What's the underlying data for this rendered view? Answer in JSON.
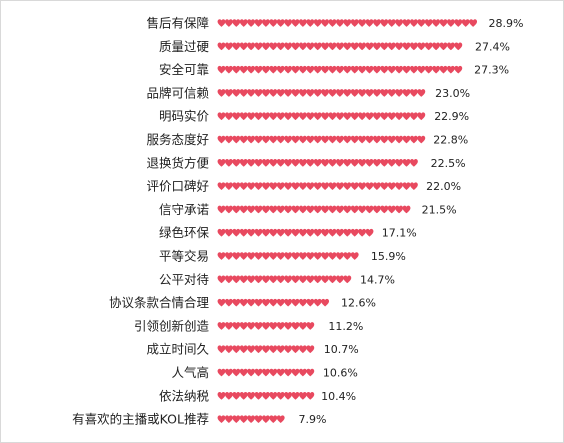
{
  "chart_data": {
    "type": "bar",
    "orientation": "horizontal",
    "title": "",
    "xlabel": "",
    "ylabel": "",
    "xlim": [
      0,
      30
    ],
    "grid": false,
    "legend": "none",
    "marker": "heart-icon",
    "bar_color": "#e8495f",
    "categories": [
      "售后有保障",
      "质量过硬",
      "安全可靠",
      "品牌可信赖",
      "明码实价",
      "服务态度好",
      "退换货方便",
      "评价口碑好",
      "信守承诺",
      "绿色环保",
      "平等交易",
      "公平对待",
      "协议条款合情合理",
      "引领创新创造",
      "成立时间久",
      "人气高",
      "依法纳税",
      "有喜欢的主播或KOL推荐"
    ],
    "values": [
      28.9,
      27.4,
      27.3,
      23.0,
      22.9,
      22.8,
      22.5,
      22.0,
      21.5,
      17.1,
      15.9,
      14.7,
      12.6,
      11.2,
      10.7,
      10.6,
      10.4,
      7.9
    ],
    "value_labels": [
      "28.9%",
      "27.4%",
      "27.3%",
      "23.0%",
      "22.9%",
      "22.8%",
      "22.5%",
      "22.0%",
      "21.5%",
      "17.1%",
      "15.9%",
      "14.7%",
      "12.6%",
      "11.2%",
      "10.7%",
      "10.6%",
      "10.4%",
      "7.9%"
    ]
  }
}
